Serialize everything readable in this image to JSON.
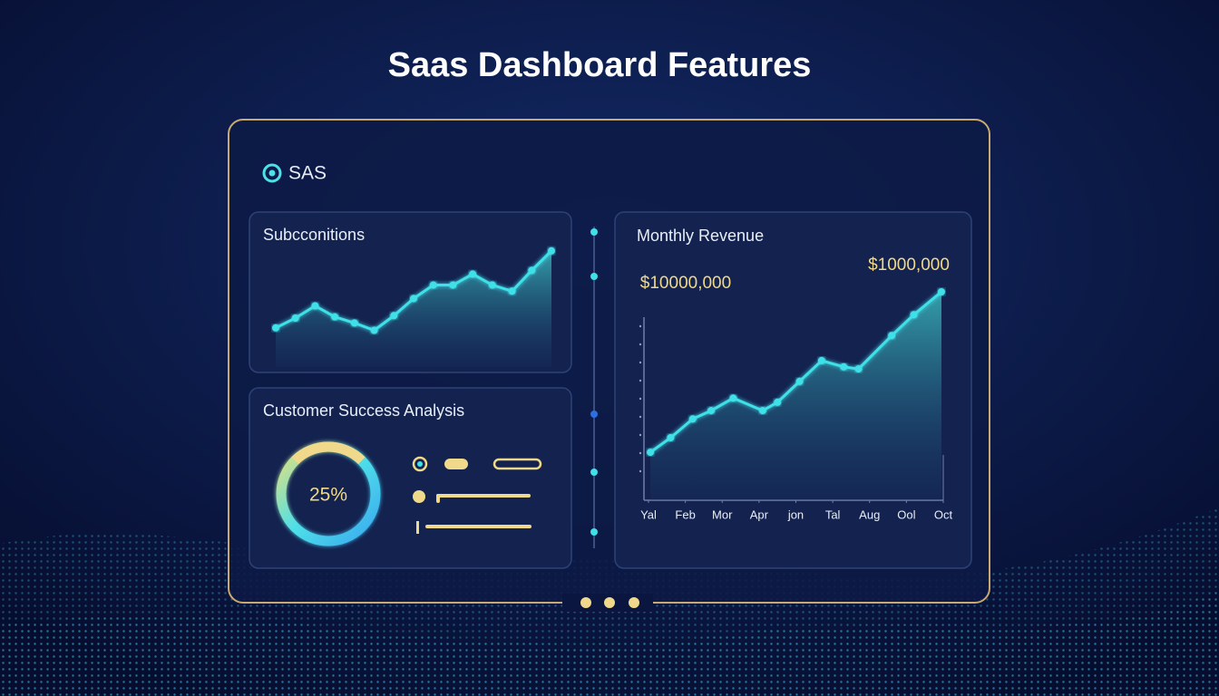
{
  "title": "Saas Dashboard Features",
  "brand": "SAS",
  "chart_data": [
    {
      "type": "line",
      "title": "Subcconitions",
      "color": "#3fe0e8",
      "values": [
        32,
        40,
        50,
        41,
        36,
        30,
        42,
        56,
        67,
        67,
        76,
        67,
        62,
        79,
        95
      ],
      "ylim": [
        0,
        100
      ]
    },
    {
      "type": "donut",
      "title": "Customer Success Analysis",
      "color": "#f0d98a",
      "values": [
        25
      ],
      "value_labels": [
        "25%"
      ]
    },
    {
      "type": "line",
      "title": "Monthly Revenue",
      "color": "#3fe0e8",
      "x": [
        0.05,
        0.6,
        1.2,
        1.7,
        2.3,
        3.1,
        3.5,
        4.1,
        4.7,
        5.3,
        5.7,
        6.6,
        7.2,
        7.95
      ],
      "values": [
        23,
        30,
        39,
        43,
        49,
        43,
        47,
        57,
        67,
        64,
        63,
        79,
        89,
        100
      ],
      "xlim": [
        0,
        8
      ],
      "ylim": [
        0,
        100
      ],
      "xticks": [
        {
          "value": 0,
          "label": "Yal"
        },
        {
          "value": 1,
          "label": "Feb"
        },
        {
          "value": 2,
          "label": "Mor"
        },
        {
          "value": 3,
          "label": "Apr"
        },
        {
          "value": 4,
          "label": "jon"
        },
        {
          "value": 5,
          "label": "Tal"
        },
        {
          "value": 6,
          "label": "Aug"
        },
        {
          "value": 7,
          "label": "Ool"
        },
        {
          "value": 8,
          "label": "Oct"
        }
      ],
      "annotations": [
        "$10000,000",
        "$1000,000"
      ]
    }
  ]
}
